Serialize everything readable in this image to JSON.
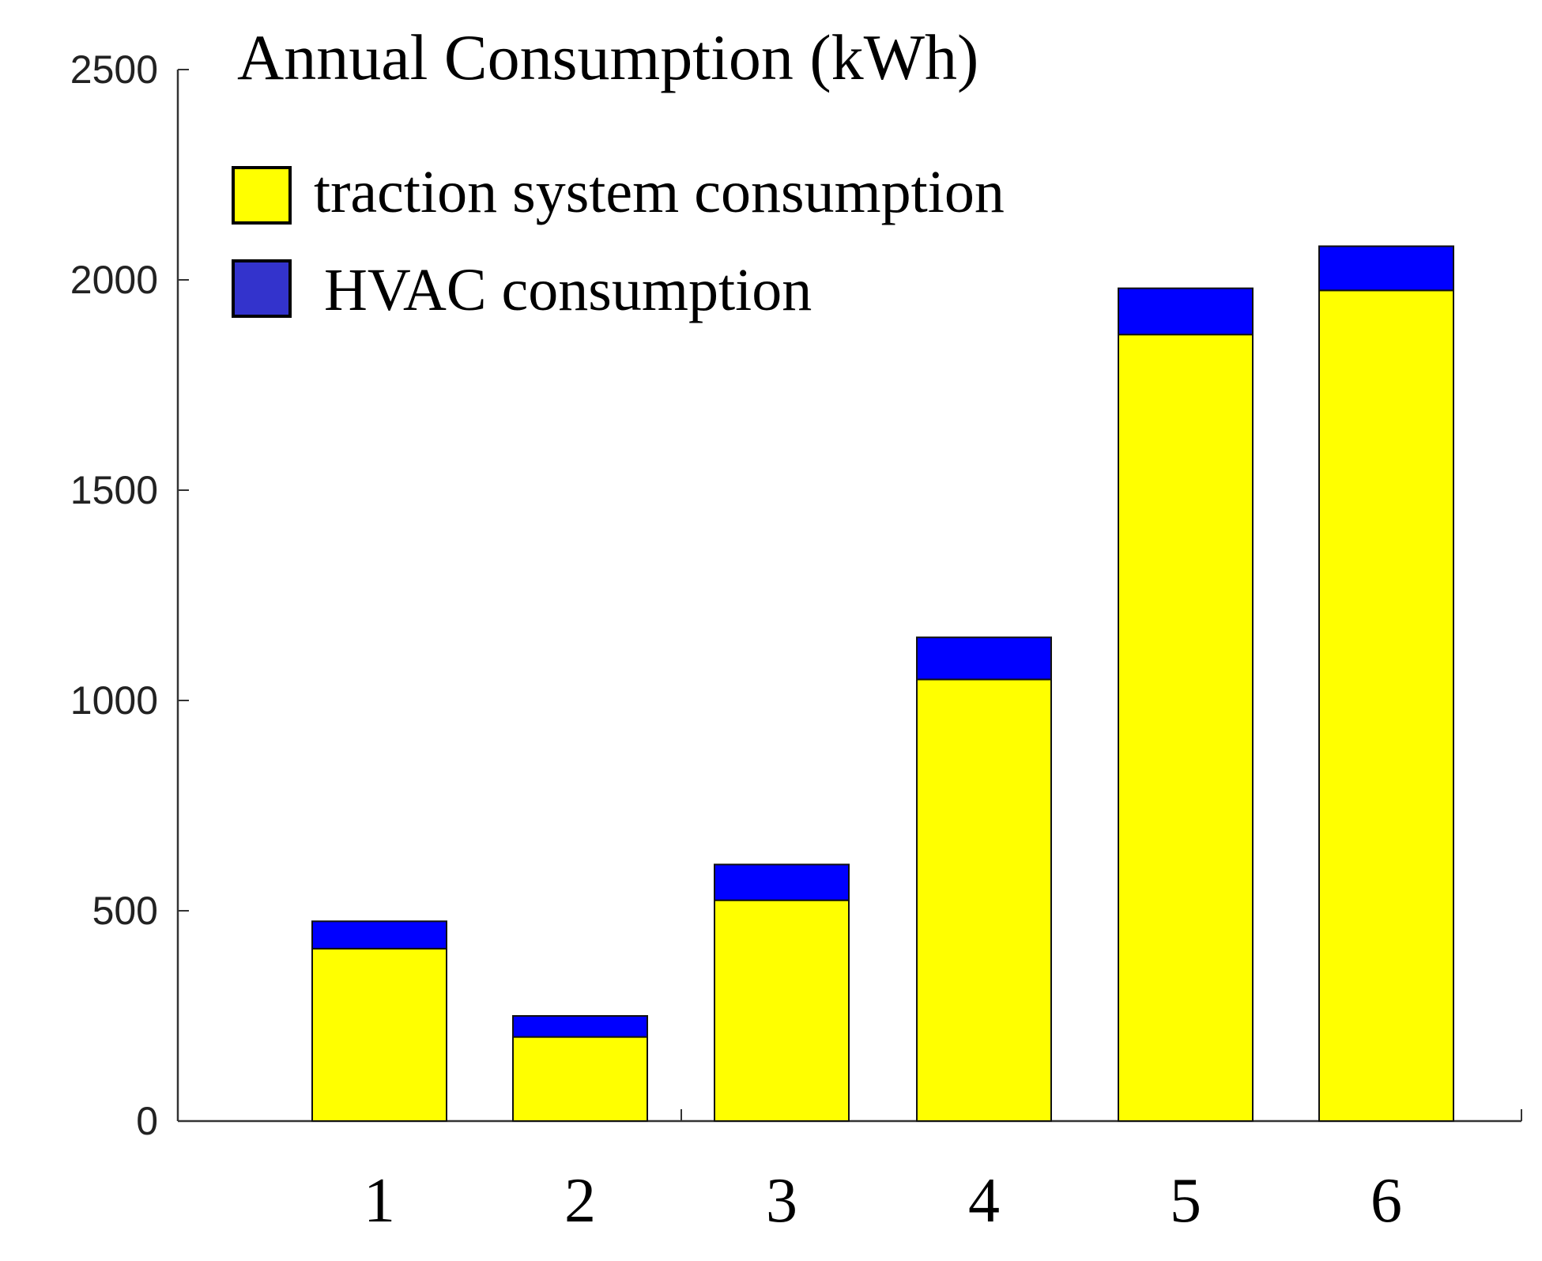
{
  "chart_data": {
    "type": "bar",
    "stacked": true,
    "title": "Annual Consumption (kWh)",
    "xlabel": "",
    "ylabel": "",
    "categories": [
      "1",
      "2",
      "3",
      "4",
      "5",
      "6"
    ],
    "series": [
      {
        "name": "traction system consumption",
        "color": "#ffff00",
        "values": [
          410,
          200,
          525,
          1050,
          1870,
          1975
        ]
      },
      {
        "name": "HVAC consumption",
        "color": "#0000ff",
        "values": [
          65,
          50,
          85,
          100,
          110,
          105
        ]
      }
    ],
    "legend_swatch_colors": [
      "#ffff00",
      "#3333cc"
    ],
    "ylim": [
      0,
      2500
    ],
    "yticks": [
      0,
      500,
      1000,
      1500,
      2000,
      2500
    ],
    "grid": false,
    "legend_position": "top-left"
  }
}
